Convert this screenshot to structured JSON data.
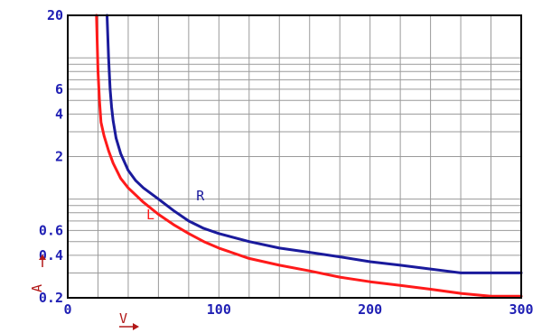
{
  "chart_data": {
    "type": "line",
    "xlabel": "V",
    "ylabel": "A",
    "xlim": [
      0,
      300
    ],
    "ylim": [
      0.2,
      20
    ],
    "y_scale": "log",
    "grid": true,
    "legend": "none",
    "x_ticks": [
      {
        "value": 0,
        "label": "0"
      },
      {
        "value": 100,
        "label": "100"
      },
      {
        "value": 200,
        "label": "200"
      },
      {
        "value": 300,
        "label": "300"
      }
    ],
    "y_ticks": [
      {
        "value": 0.2,
        "label": "0.2"
      },
      {
        "value": 0.4,
        "label": "0.4"
      },
      {
        "value": 0.6,
        "label": "0.6"
      },
      {
        "value": 2,
        "label": "2"
      },
      {
        "value": 4,
        "label": "4"
      },
      {
        "value": 6,
        "label": "6"
      },
      {
        "value": 20,
        "label": "20"
      }
    ],
    "series": [
      {
        "name": "L",
        "color": "#ff1a1a",
        "x": [
          19,
          20,
          21,
          22,
          24,
          27,
          30,
          35,
          40,
          50,
          60,
          70,
          80,
          90,
          100,
          120,
          140,
          160,
          180,
          200,
          220,
          240,
          260,
          280,
          300
        ],
        "y": [
          20,
          8,
          5,
          3.5,
          2.8,
          2.2,
          1.8,
          1.4,
          1.2,
          0.95,
          0.78,
          0.66,
          0.57,
          0.5,
          0.45,
          0.38,
          0.34,
          0.31,
          0.28,
          0.26,
          0.245,
          0.23,
          0.215,
          0.205,
          0.205
        ],
        "label_at": [
          52,
          0.72
        ]
      },
      {
        "name": "R",
        "color": "#1a1a9c",
        "x": [
          26,
          27,
          28,
          29,
          30,
          32,
          35,
          40,
          45,
          50,
          60,
          70,
          80,
          90,
          100,
          120,
          140,
          160,
          180,
          200,
          220,
          240,
          260,
          280,
          300
        ],
        "y": [
          20,
          10,
          6,
          4.5,
          3.6,
          2.7,
          2.1,
          1.6,
          1.35,
          1.2,
          1.0,
          0.83,
          0.7,
          0.62,
          0.57,
          0.5,
          0.45,
          0.42,
          0.39,
          0.36,
          0.34,
          0.32,
          0.3,
          0.3,
          0.3
        ],
        "label_at": [
          85,
          0.98
        ]
      }
    ]
  }
}
